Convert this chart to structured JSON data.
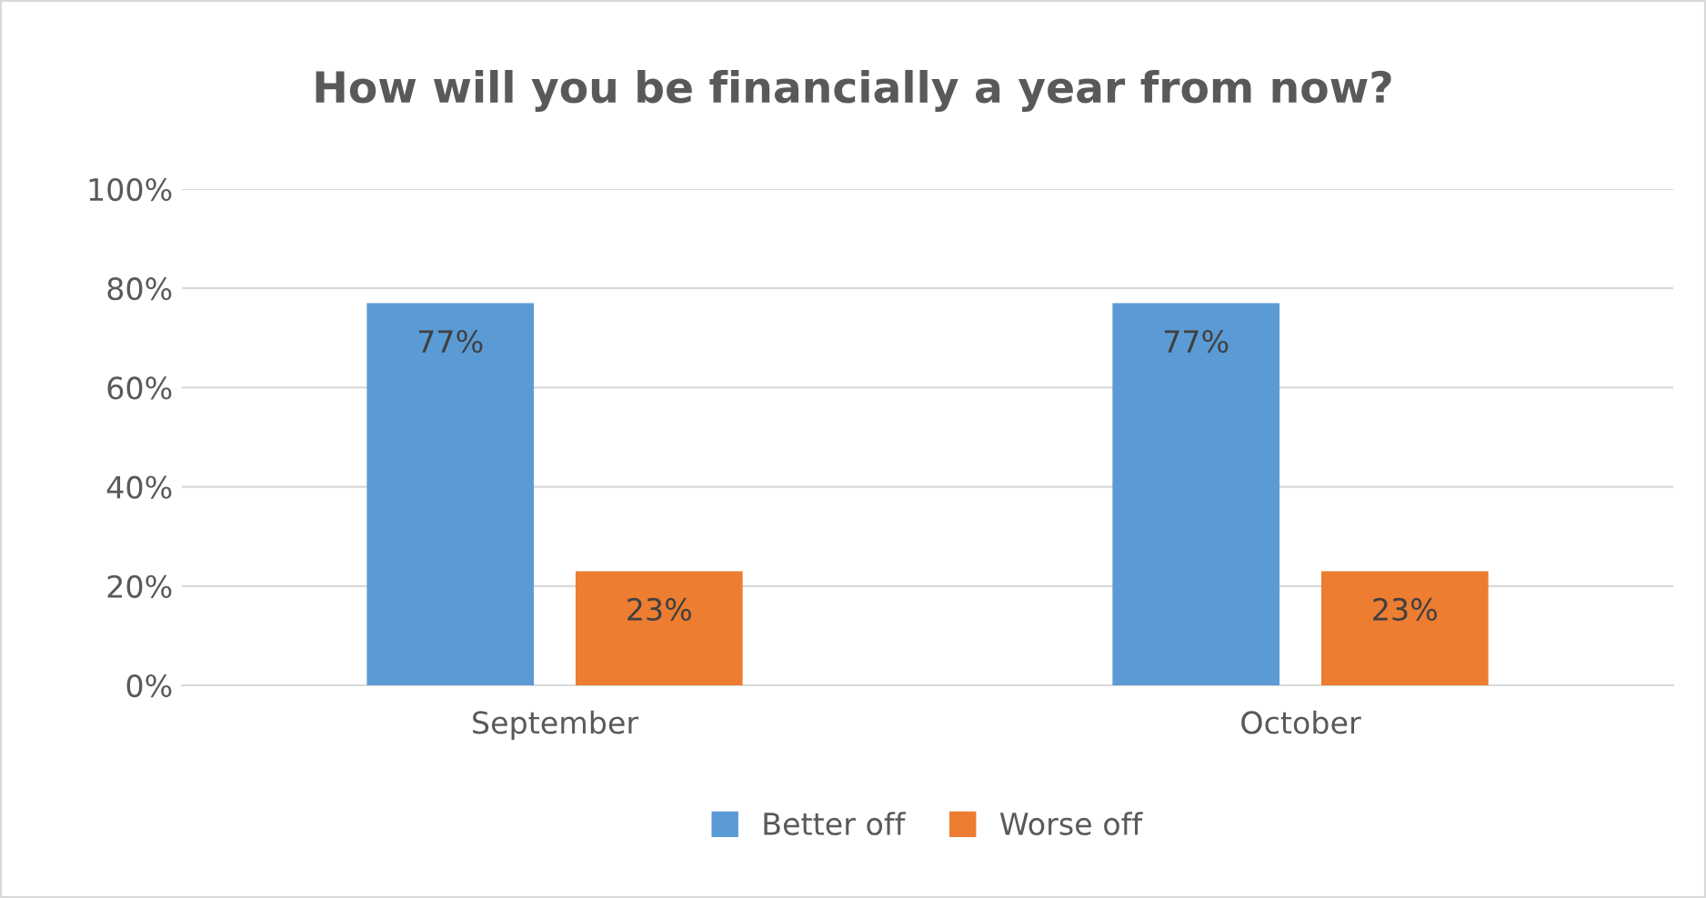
{
  "chart_data": {
    "type": "bar",
    "title": "How will you be financially a year from now?",
    "categories": [
      "September",
      "October"
    ],
    "series": [
      {
        "name": "Better off",
        "color": "#5b9bd5",
        "values": [
          77,
          77
        ],
        "value_labels": [
          "77%",
          "77%"
        ]
      },
      {
        "name": "Worse off",
        "color": "#ed7d31",
        "values": [
          23,
          23
        ],
        "value_labels": [
          "23%",
          "23%"
        ]
      }
    ],
    "ylim": [
      0,
      100
    ],
    "yticks": [
      {
        "value": 0,
        "label": "0%"
      },
      {
        "value": 20,
        "label": "20%"
      },
      {
        "value": 40,
        "label": "40%"
      },
      {
        "value": 60,
        "label": "60%"
      },
      {
        "value": 80,
        "label": "80%"
      },
      {
        "value": 100,
        "label": "100%"
      }
    ],
    "grid": "y",
    "legend": "bottom"
  }
}
